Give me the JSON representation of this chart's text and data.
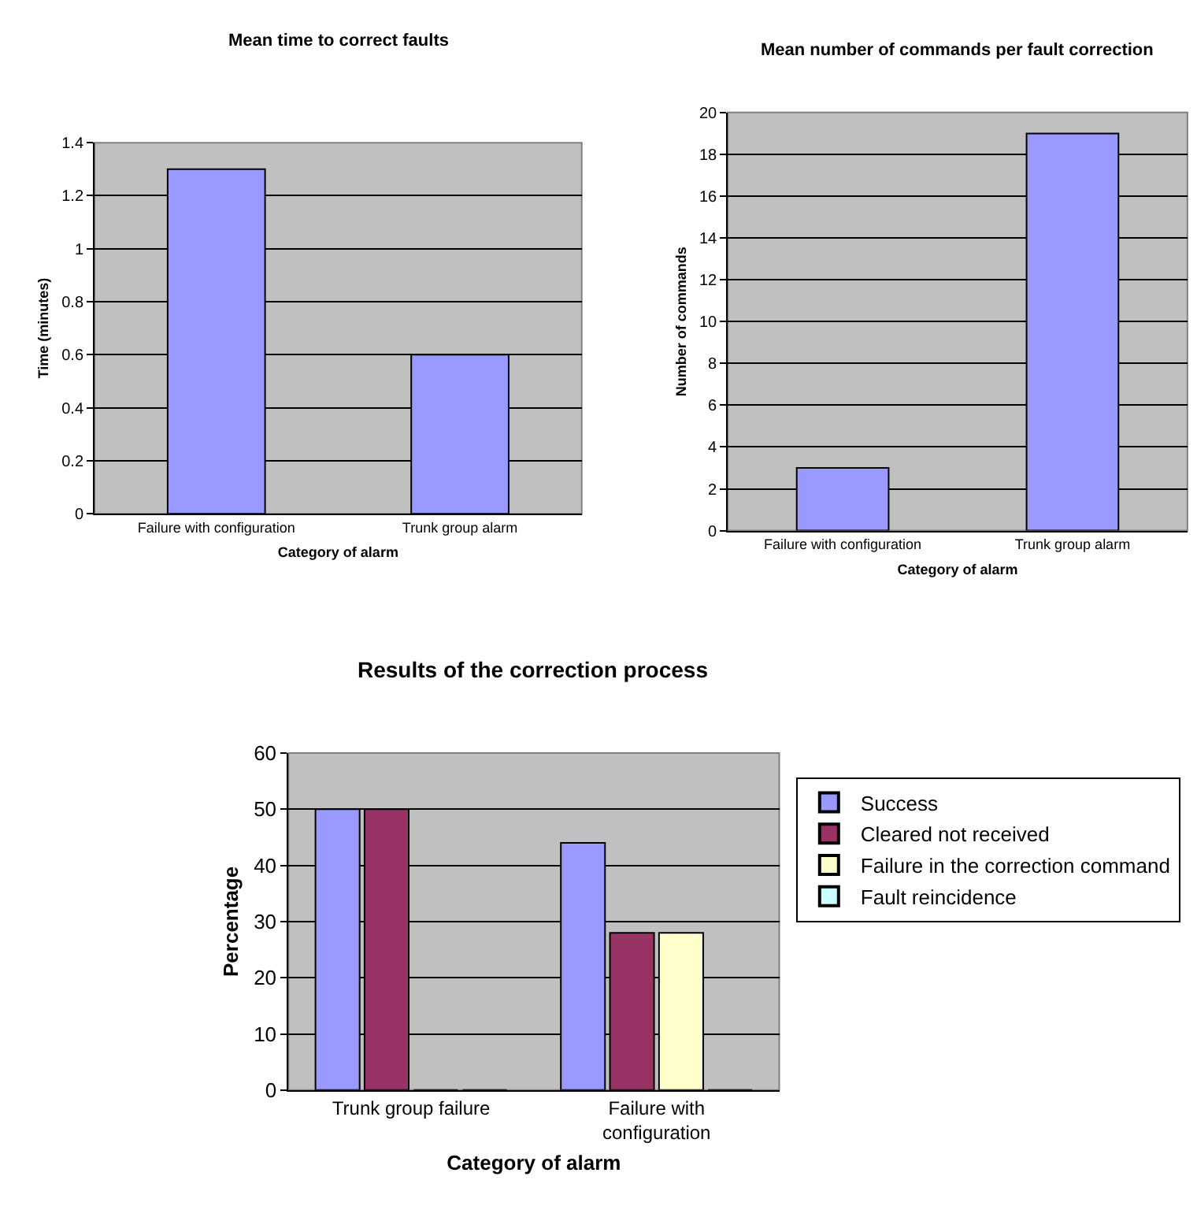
{
  "chart_data": [
    {
      "type": "bar",
      "title": "Mean time to correct faults",
      "xlabel": "Category of alarm",
      "ylabel": "Time (minutes)",
      "categories": [
        "Failure with configuration",
        "Trunk group alarm"
      ],
      "values": [
        1.3,
        0.6
      ],
      "color": "#9999ff",
      "ylim": [
        0,
        1.4
      ],
      "yticks": [
        0,
        0.2,
        0.4,
        0.6,
        0.8,
        1,
        1.2,
        1.4
      ],
      "grid": "y",
      "legend": false
    },
    {
      "type": "bar",
      "title": "Mean number of commands per fault correction",
      "xlabel": "Category of alarm",
      "ylabel": "Number of commands",
      "categories": [
        "Failure with configuration",
        "Trunk group alarm"
      ],
      "values": [
        3,
        19
      ],
      "color": "#9999ff",
      "ylim": [
        0,
        20
      ],
      "yticks": [
        0,
        2,
        4,
        6,
        8,
        10,
        12,
        14,
        16,
        18,
        20
      ],
      "grid": "y",
      "legend": false
    },
    {
      "type": "bar",
      "title": "Results of the correction process",
      "xlabel": "Category of alarm",
      "ylabel": "Percentage",
      "categories": [
        "Trunk group failure",
        "Failure with\nconfiguration"
      ],
      "series": [
        {
          "name": "Success",
          "color": "#9999ff",
          "values": [
            50,
            44
          ]
        },
        {
          "name": "Cleared not received",
          "color": "#993366",
          "values": [
            50,
            28
          ]
        },
        {
          "name": "Failure in the correction command",
          "color": "#ffffcc",
          "values": [
            0,
            28
          ]
        },
        {
          "name": "Fault reincidence",
          "color": "#ccffff",
          "values": [
            0,
            0
          ]
        }
      ],
      "ylim": [
        0,
        60
      ],
      "yticks": [
        0,
        10,
        20,
        30,
        40,
        50,
        60
      ],
      "grid": "y",
      "legend": "right"
    }
  ]
}
